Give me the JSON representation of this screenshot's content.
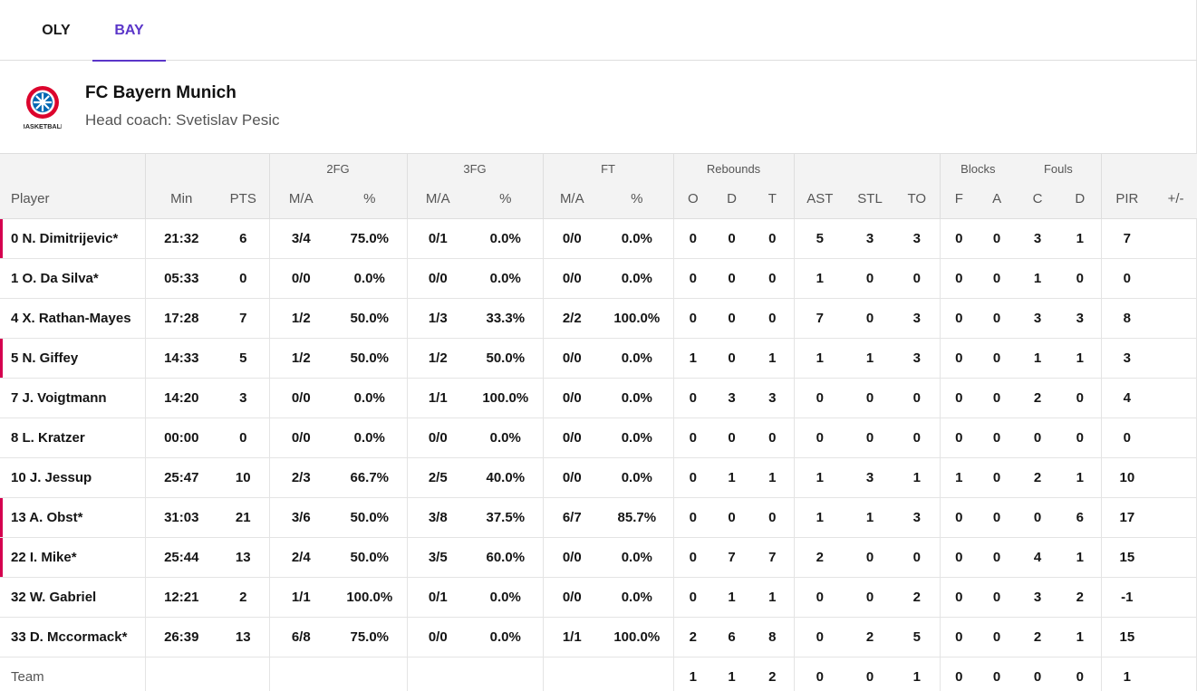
{
  "tabs": [
    {
      "label": "OLY",
      "active": false
    },
    {
      "label": "BAY",
      "active": true
    }
  ],
  "team": {
    "name": "FC Bayern Munich",
    "coach": "Head coach: Svetislav Pesic",
    "logo_icon": "fc-bayern-basketball-logo-icon",
    "logo_text": "BASKETBALL"
  },
  "colors": {
    "accent": "#5b36c9",
    "starter_marker": "#d5004f",
    "logo_red": "#dc052d",
    "logo_blue": "#0066b2"
  },
  "groups": {
    "fg2": "2FG",
    "fg3": "3FG",
    "ft": "FT",
    "rebounds": "Rebounds",
    "blocks": "Blocks",
    "fouls": "Fouls"
  },
  "columns": [
    "Player",
    "Min",
    "PTS",
    "M/A",
    "%",
    "M/A",
    "%",
    "M/A",
    "%",
    "O",
    "D",
    "T",
    "AST",
    "STL",
    "TO",
    "F",
    "A",
    "C",
    "D",
    "PIR",
    "+/-"
  ],
  "rows": [
    {
      "starter": true,
      "cells": [
        "0 N. Dimitrijevic*",
        "21:32",
        "6",
        "3/4",
        "75.0%",
        "0/1",
        "0.0%",
        "0/0",
        "0.0%",
        "0",
        "0",
        "0",
        "5",
        "3",
        "3",
        "0",
        "0",
        "3",
        "1",
        "7",
        ""
      ]
    },
    {
      "starter": false,
      "cells": [
        "1 O. Da Silva*",
        "05:33",
        "0",
        "0/0",
        "0.0%",
        "0/0",
        "0.0%",
        "0/0",
        "0.0%",
        "0",
        "0",
        "0",
        "1",
        "0",
        "0",
        "0",
        "0",
        "1",
        "0",
        "0",
        ""
      ]
    },
    {
      "starter": false,
      "cells": [
        "4 X. Rathan-Mayes",
        "17:28",
        "7",
        "1/2",
        "50.0%",
        "1/3",
        "33.3%",
        "2/2",
        "100.0%",
        "0",
        "0",
        "0",
        "7",
        "0",
        "3",
        "0",
        "0",
        "3",
        "3",
        "8",
        ""
      ]
    },
    {
      "starter": true,
      "cells": [
        "5 N. Giffey",
        "14:33",
        "5",
        "1/2",
        "50.0%",
        "1/2",
        "50.0%",
        "0/0",
        "0.0%",
        "1",
        "0",
        "1",
        "1",
        "1",
        "3",
        "0",
        "0",
        "1",
        "1",
        "3",
        ""
      ]
    },
    {
      "starter": false,
      "cells": [
        "7 J. Voigtmann",
        "14:20",
        "3",
        "0/0",
        "0.0%",
        "1/1",
        "100.0%",
        "0/0",
        "0.0%",
        "0",
        "3",
        "3",
        "0",
        "0",
        "0",
        "0",
        "0",
        "2",
        "0",
        "4",
        ""
      ]
    },
    {
      "starter": false,
      "cells": [
        "8 L. Kratzer",
        "00:00",
        "0",
        "0/0",
        "0.0%",
        "0/0",
        "0.0%",
        "0/0",
        "0.0%",
        "0",
        "0",
        "0",
        "0",
        "0",
        "0",
        "0",
        "0",
        "0",
        "0",
        "0",
        ""
      ]
    },
    {
      "starter": false,
      "cells": [
        "10 J. Jessup",
        "25:47",
        "10",
        "2/3",
        "66.7%",
        "2/5",
        "40.0%",
        "0/0",
        "0.0%",
        "0",
        "1",
        "1",
        "1",
        "3",
        "1",
        "1",
        "0",
        "2",
        "1",
        "10",
        ""
      ]
    },
    {
      "starter": true,
      "cells": [
        "13 A. Obst*",
        "31:03",
        "21",
        "3/6",
        "50.0%",
        "3/8",
        "37.5%",
        "6/7",
        "85.7%",
        "0",
        "0",
        "0",
        "1",
        "1",
        "3",
        "0",
        "0",
        "0",
        "6",
        "17",
        ""
      ]
    },
    {
      "starter": true,
      "cells": [
        "22 I. Mike*",
        "25:44",
        "13",
        "2/4",
        "50.0%",
        "3/5",
        "60.0%",
        "0/0",
        "0.0%",
        "0",
        "7",
        "7",
        "2",
        "0",
        "0",
        "0",
        "0",
        "4",
        "1",
        "15",
        ""
      ]
    },
    {
      "starter": false,
      "cells": [
        "32 W. Gabriel",
        "12:21",
        "2",
        "1/1",
        "100.0%",
        "0/1",
        "0.0%",
        "0/0",
        "0.0%",
        "0",
        "1",
        "1",
        "0",
        "0",
        "2",
        "0",
        "0",
        "3",
        "2",
        "-1",
        ""
      ]
    },
    {
      "starter": false,
      "cells": [
        "33 D. Mccormack*",
        "26:39",
        "13",
        "6/8",
        "75.0%",
        "0/0",
        "0.0%",
        "1/1",
        "100.0%",
        "2",
        "6",
        "8",
        "0",
        "2",
        "5",
        "0",
        "0",
        "2",
        "1",
        "15",
        ""
      ]
    },
    {
      "starter": false,
      "team": true,
      "cells": [
        "Team",
        "",
        "",
        "",
        "",
        "",
        "",
        "",
        "",
        "1",
        "1",
        "2",
        "0",
        "0",
        "1",
        "0",
        "0",
        "0",
        "0",
        "1",
        ""
      ]
    }
  ]
}
